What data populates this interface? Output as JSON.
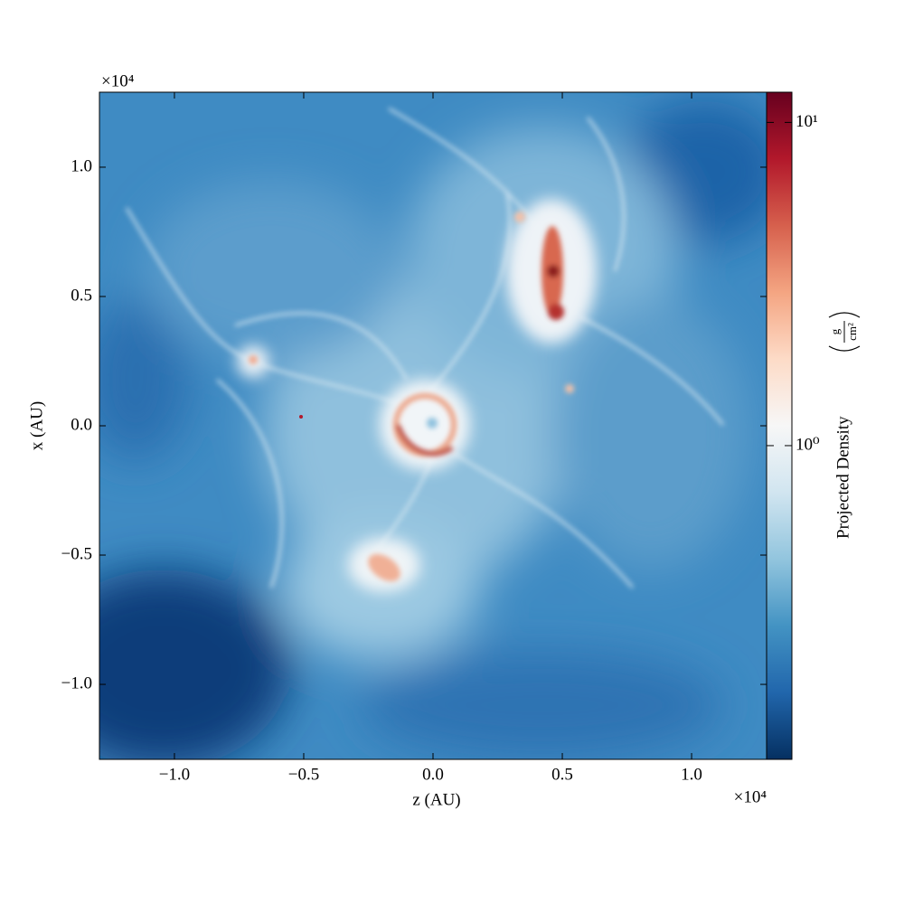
{
  "chart_data": {
    "type": "image",
    "xlabel": "z (AU)",
    "ylabel": "x (AU)",
    "xlim": [
      -12900,
      12900
    ],
    "ylim": [
      -12900,
      12900
    ],
    "xticks": [
      {
        "value": -10000,
        "label": "−1.0"
      },
      {
        "value": -5000,
        "label": "−0.5"
      },
      {
        "value": 0,
        "label": "0.0"
      },
      {
        "value": 5000,
        "label": "0.5"
      },
      {
        "value": 10000,
        "label": "1.0"
      }
    ],
    "x_offset_label": "×10⁴",
    "yticks": [
      {
        "value": -10000,
        "label": "−1.0"
      },
      {
        "value": -5000,
        "label": "−0.5"
      },
      {
        "value": 0,
        "label": "0.0"
      },
      {
        "value": 5000,
        "label": "0.5"
      },
      {
        "value": 10000,
        "label": "1.0"
      }
    ],
    "y_offset_label": "×10⁴",
    "colorbar": {
      "label": "Projected Density",
      "units": {
        "numerator": "g",
        "denominator": "cm²"
      },
      "scale": "log",
      "clim": [
        0.107,
        12.4
      ],
      "colormap": "RdBu_r",
      "ticks": [
        {
          "value": 1,
          "label": "10⁰"
        },
        {
          "value": 10,
          "label": "10¹"
        }
      ]
    }
  }
}
